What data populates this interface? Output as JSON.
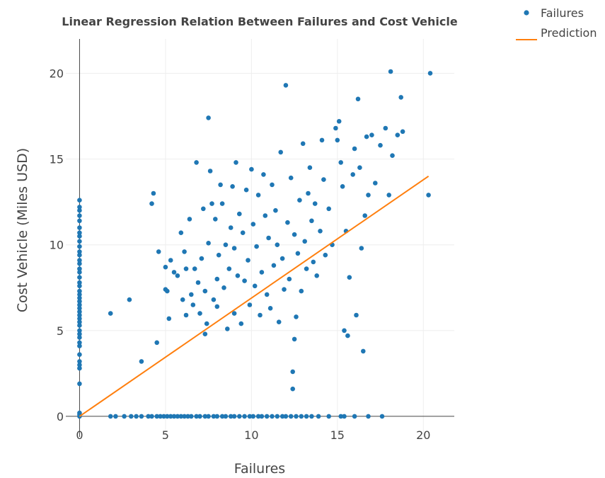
{
  "colors": {
    "points": "#1f77b4",
    "line": "#ff7f0e"
  },
  "chart_data": {
    "type": "scatter",
    "title": "Linear Regression Relation Between Failures and Cost Vehicle",
    "xlabel": "Failures",
    "ylabel": "Cost Vehicle (Miles USD)",
    "xlim": [
      -0.8,
      21.8
    ],
    "ylim": [
      -1.2,
      22.0
    ],
    "xticks": [
      0,
      5,
      10,
      15,
      20
    ],
    "yticks": [
      0,
      5,
      10,
      15,
      20
    ],
    "legend": {
      "position": "top-right",
      "entries": [
        "Failures",
        "Prediction"
      ]
    },
    "series": [
      {
        "name": "Failures",
        "mode": "markers",
        "points": [
          [
            0,
            0
          ],
          [
            0,
            0.1
          ],
          [
            0,
            0.2
          ],
          [
            0,
            1.9
          ],
          [
            0,
            2.8
          ],
          [
            0,
            3.0
          ],
          [
            0,
            3.2
          ],
          [
            0,
            3.6
          ],
          [
            0,
            4.1
          ],
          [
            0,
            4.3
          ],
          [
            0,
            4.6
          ],
          [
            0,
            4.8
          ],
          [
            0,
            5.0
          ],
          [
            0,
            5.3
          ],
          [
            0,
            5.5
          ],
          [
            0,
            5.7
          ],
          [
            0,
            5.9
          ],
          [
            0,
            6.1
          ],
          [
            0,
            6.3
          ],
          [
            0,
            6.5
          ],
          [
            0,
            6.7
          ],
          [
            0,
            6.9
          ],
          [
            0,
            7.1
          ],
          [
            0,
            7.3
          ],
          [
            0,
            7.6
          ],
          [
            0,
            7.8
          ],
          [
            0,
            8.1
          ],
          [
            0,
            8.4
          ],
          [
            0,
            8.6
          ],
          [
            0,
            8.9
          ],
          [
            0,
            9.1
          ],
          [
            0,
            9.4
          ],
          [
            0,
            9.6
          ],
          [
            0,
            9.9
          ],
          [
            0,
            10.2
          ],
          [
            0,
            10.5
          ],
          [
            0,
            10.7
          ],
          [
            0,
            11.0
          ],
          [
            0,
            11.4
          ],
          [
            0,
            11.7
          ],
          [
            0,
            12.0
          ],
          [
            0,
            12.2
          ],
          [
            0,
            12.6
          ],
          [
            1.8,
            0
          ],
          [
            2.1,
            0
          ],
          [
            2.6,
            0
          ],
          [
            3.0,
            0
          ],
          [
            3.3,
            0
          ],
          [
            3.6,
            0
          ],
          [
            4.0,
            0
          ],
          [
            4.2,
            0
          ],
          [
            4.5,
            0
          ],
          [
            4.7,
            0
          ],
          [
            4.9,
            0
          ],
          [
            5.1,
            0
          ],
          [
            5.3,
            0
          ],
          [
            5.5,
            0
          ],
          [
            5.7,
            0
          ],
          [
            5.9,
            0
          ],
          [
            6.1,
            0
          ],
          [
            6.3,
            0
          ],
          [
            6.5,
            0
          ],
          [
            6.8,
            0
          ],
          [
            7.0,
            0
          ],
          [
            7.3,
            0
          ],
          [
            7.5,
            0
          ],
          [
            7.8,
            0
          ],
          [
            8.0,
            0
          ],
          [
            8.3,
            0
          ],
          [
            8.5,
            0
          ],
          [
            8.8,
            0
          ],
          [
            9.0,
            0
          ],
          [
            9.3,
            0
          ],
          [
            9.6,
            0
          ],
          [
            9.9,
            0
          ],
          [
            10.1,
            0
          ],
          [
            10.4,
            0
          ],
          [
            10.6,
            0
          ],
          [
            10.9,
            0
          ],
          [
            11.2,
            0
          ],
          [
            11.5,
            0
          ],
          [
            11.8,
            0
          ],
          [
            12.0,
            0
          ],
          [
            12.3,
            0
          ],
          [
            12.6,
            0
          ],
          [
            12.9,
            0
          ],
          [
            13.2,
            0
          ],
          [
            13.5,
            0
          ],
          [
            13.9,
            0
          ],
          [
            14.5,
            0
          ],
          [
            15.2,
            0
          ],
          [
            15.4,
            0
          ],
          [
            16.0,
            0
          ],
          [
            16.8,
            0
          ],
          [
            17.6,
            0
          ],
          [
            1.8,
            6.0
          ],
          [
            2.9,
            6.8
          ],
          [
            3.6,
            3.2
          ],
          [
            4.2,
            12.4
          ],
          [
            4.3,
            13.0
          ],
          [
            4.5,
            4.3
          ],
          [
            4.6,
            9.6
          ],
          [
            5.0,
            8.7
          ],
          [
            5.0,
            7.4
          ],
          [
            5.1,
            7.3
          ],
          [
            5.2,
            5.7
          ],
          [
            5.3,
            9.1
          ],
          [
            5.5,
            8.4
          ],
          [
            5.7,
            8.2
          ],
          [
            5.9,
            10.7
          ],
          [
            6.0,
            6.8
          ],
          [
            6.1,
            9.6
          ],
          [
            6.2,
            5.9
          ],
          [
            6.2,
            8.6
          ],
          [
            6.4,
            11.5
          ],
          [
            6.5,
            7.1
          ],
          [
            6.6,
            6.5
          ],
          [
            6.7,
            8.6
          ],
          [
            6.8,
            14.8
          ],
          [
            6.9,
            7.8
          ],
          [
            7.0,
            6.0
          ],
          [
            7.1,
            9.2
          ],
          [
            7.2,
            12.1
          ],
          [
            7.3,
            4.8
          ],
          [
            7.3,
            7.3
          ],
          [
            7.4,
            5.4
          ],
          [
            7.5,
            10.1
          ],
          [
            7.5,
            17.4
          ],
          [
            7.6,
            14.3
          ],
          [
            7.7,
            12.4
          ],
          [
            7.8,
            6.8
          ],
          [
            7.9,
            11.5
          ],
          [
            8.0,
            8.0
          ],
          [
            8.0,
            6.4
          ],
          [
            8.1,
            9.4
          ],
          [
            8.2,
            13.5
          ],
          [
            8.3,
            12.4
          ],
          [
            8.4,
            7.5
          ],
          [
            8.5,
            10.0
          ],
          [
            8.6,
            5.1
          ],
          [
            8.7,
            8.6
          ],
          [
            8.8,
            11.0
          ],
          [
            8.9,
            13.4
          ],
          [
            9.0,
            6.0
          ],
          [
            9.0,
            9.8
          ],
          [
            9.1,
            14.8
          ],
          [
            9.2,
            8.2
          ],
          [
            9.3,
            11.8
          ],
          [
            9.4,
            5.4
          ],
          [
            9.5,
            10.7
          ],
          [
            9.6,
            7.9
          ],
          [
            9.7,
            13.2
          ],
          [
            9.8,
            9.1
          ],
          [
            9.9,
            6.5
          ],
          [
            10.0,
            14.4
          ],
          [
            10.1,
            11.2
          ],
          [
            10.2,
            7.6
          ],
          [
            10.3,
            9.9
          ],
          [
            10.4,
            12.9
          ],
          [
            10.5,
            5.9
          ],
          [
            10.6,
            8.4
          ],
          [
            10.7,
            14.1
          ],
          [
            10.8,
            11.7
          ],
          [
            10.9,
            7.1
          ],
          [
            11.0,
            10.4
          ],
          [
            11.1,
            6.3
          ],
          [
            11.2,
            13.5
          ],
          [
            11.3,
            8.8
          ],
          [
            11.4,
            12.0
          ],
          [
            11.5,
            10.0
          ],
          [
            11.6,
            5.5
          ],
          [
            11.7,
            15.4
          ],
          [
            11.8,
            9.2
          ],
          [
            11.9,
            7.4
          ],
          [
            12.0,
            19.3
          ],
          [
            12.1,
            11.3
          ],
          [
            12.2,
            8.0
          ],
          [
            12.3,
            13.9
          ],
          [
            12.4,
            1.6
          ],
          [
            12.4,
            2.6
          ],
          [
            12.5,
            10.6
          ],
          [
            12.5,
            4.5
          ],
          [
            12.6,
            5.8
          ],
          [
            12.7,
            9.5
          ],
          [
            12.8,
            12.6
          ],
          [
            12.9,
            7.3
          ],
          [
            13.0,
            15.9
          ],
          [
            13.1,
            10.2
          ],
          [
            13.2,
            8.6
          ],
          [
            13.3,
            13.0
          ],
          [
            13.4,
            14.5
          ],
          [
            13.5,
            11.4
          ],
          [
            13.6,
            9.0
          ],
          [
            13.7,
            12.4
          ],
          [
            13.8,
            8.2
          ],
          [
            14.0,
            10.8
          ],
          [
            14.1,
            16.1
          ],
          [
            14.2,
            13.8
          ],
          [
            14.3,
            9.4
          ],
          [
            14.5,
            12.1
          ],
          [
            14.7,
            10.0
          ],
          [
            14.9,
            16.8
          ],
          [
            15.0,
            16.1
          ],
          [
            15.1,
            17.2
          ],
          [
            15.2,
            14.8
          ],
          [
            15.3,
            13.4
          ],
          [
            15.4,
            5.0
          ],
          [
            15.5,
            10.8
          ],
          [
            15.6,
            4.7
          ],
          [
            15.7,
            8.1
          ],
          [
            15.9,
            14.1
          ],
          [
            16.0,
            15.6
          ],
          [
            16.1,
            5.9
          ],
          [
            16.2,
            18.5
          ],
          [
            16.3,
            14.5
          ],
          [
            16.4,
            9.8
          ],
          [
            16.5,
            3.8
          ],
          [
            16.6,
            11.7
          ],
          [
            16.7,
            16.3
          ],
          [
            16.8,
            12.9
          ],
          [
            17.0,
            16.4
          ],
          [
            17.2,
            13.6
          ],
          [
            17.5,
            15.8
          ],
          [
            17.8,
            16.8
          ],
          [
            18.0,
            12.9
          ],
          [
            18.1,
            20.1
          ],
          [
            18.2,
            15.2
          ],
          [
            18.5,
            16.4
          ],
          [
            18.7,
            18.6
          ],
          [
            18.8,
            16.6
          ],
          [
            20.3,
            12.9
          ],
          [
            20.4,
            20.0
          ]
        ]
      },
      {
        "name": "Prediction",
        "mode": "line",
        "points": [
          [
            0,
            0
          ],
          [
            20.3,
            14.0
          ]
        ]
      }
    ]
  }
}
